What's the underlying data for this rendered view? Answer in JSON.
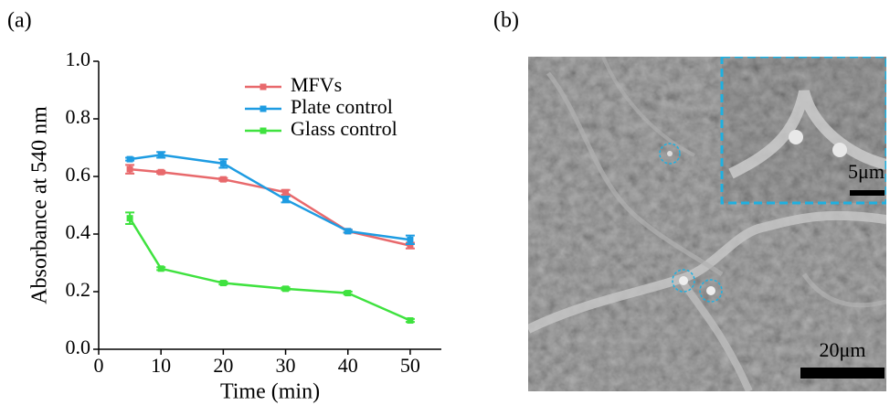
{
  "panels": {
    "a": "(a)",
    "b": "(b)"
  },
  "image": {
    "inset_scale": "5μm",
    "main_scale": "20μm"
  },
  "chart_data": {
    "type": "line",
    "x_label": "Time (min)",
    "y_label": "Absorbance at 540 nm",
    "x": [
      5,
      10,
      20,
      30,
      40,
      50
    ],
    "series": [
      {
        "name": "MFVs",
        "color": "#e8696c",
        "values": [
          0.625,
          0.615,
          0.59,
          0.545,
          0.41,
          0.36
        ],
        "errors": [
          0.015,
          0.005,
          0.005,
          0.008,
          0.005,
          0.01
        ]
      },
      {
        "name": "Plate control",
        "color": "#1e9ce2",
        "values": [
          0.66,
          0.675,
          0.645,
          0.52,
          0.41,
          0.38
        ],
        "errors": [
          0.005,
          0.01,
          0.015,
          0.01,
          0.005,
          0.015
        ]
      },
      {
        "name": "Glass control",
        "color": "#3fe23f",
        "values": [
          0.455,
          0.28,
          0.23,
          0.21,
          0.195,
          0.1
        ],
        "errors": [
          0.02,
          0.005,
          0.005,
          0.005,
          0.005,
          0.005
        ]
      }
    ],
    "xlim": [
      0,
      55
    ],
    "xticks": [
      0,
      10,
      20,
      30,
      40,
      50
    ],
    "ylim": [
      0,
      1
    ],
    "yticks": [
      {
        "value": 0,
        "label": "0.0"
      },
      0.2,
      0.4,
      0.6,
      0.8,
      {
        "value": 1,
        "label": "1.0"
      }
    ],
    "legend": "upper right"
  }
}
